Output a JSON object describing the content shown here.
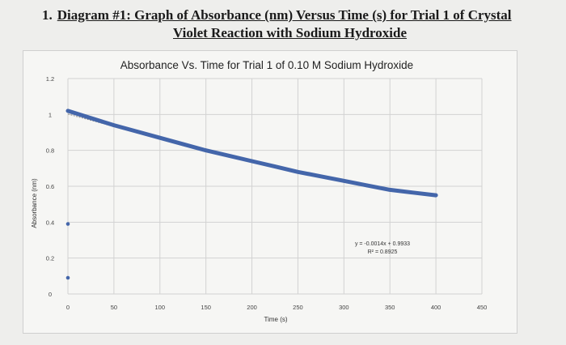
{
  "page": {
    "heading_number": "1.",
    "heading_line1": "Diagram #1: Graph of Absorbance (nm) Versus Time (s) for Trial 1 of Crystal",
    "heading_line2": "Violet Reaction with Sodium Hydroxide"
  },
  "chart_data": {
    "type": "scatter",
    "title": "Absorbance Vs. Time for Trial 1 of 0.10 M Sodium Hydroxide",
    "xlabel": "Time (s)",
    "ylabel": "Absorbance (nm)",
    "xlim": [
      0,
      450
    ],
    "ylim": [
      0,
      1.2
    ],
    "x_ticks": [
      0,
      50,
      100,
      150,
      200,
      250,
      300,
      350,
      400,
      450
    ],
    "x_tick_labels": [
      "0",
      "50",
      "100",
      "150",
      "200",
      "250",
      "300",
      "350",
      "400",
      "450"
    ],
    "y_ticks": [
      0,
      0.2,
      0.4,
      0.6,
      0.8,
      1,
      1.2
    ],
    "y_tick_labels": [
      "0",
      "0.2",
      "0.4",
      "0.6",
      "0.8",
      "1",
      "1.2"
    ],
    "grid": true,
    "series": [
      {
        "color": "#4466aa",
        "points": [
          [
            0,
            1.02
          ],
          [
            25,
            0.98
          ],
          [
            50,
            0.94
          ],
          [
            75,
            0.905
          ],
          [
            100,
            0.87
          ],
          [
            125,
            0.835
          ],
          [
            150,
            0.8
          ],
          [
            175,
            0.77
          ],
          [
            200,
            0.74
          ],
          [
            225,
            0.71
          ],
          [
            250,
            0.68
          ],
          [
            275,
            0.655
          ],
          [
            300,
            0.63
          ],
          [
            325,
            0.605
          ],
          [
            350,
            0.58
          ],
          [
            375,
            0.565
          ],
          [
            400,
            0.55
          ],
          [
            0,
            0.39
          ],
          [
            0,
            0.09
          ]
        ]
      }
    ],
    "trendline": {
      "color": "#8a8a8a",
      "slope": -0.0014,
      "intercept": 0.9933,
      "x_range": [
        0,
        400
      ]
    },
    "annotations": {
      "equation": "y = -0.0014x + 0.9933",
      "r_squared": "R² = 0.8925"
    }
  }
}
